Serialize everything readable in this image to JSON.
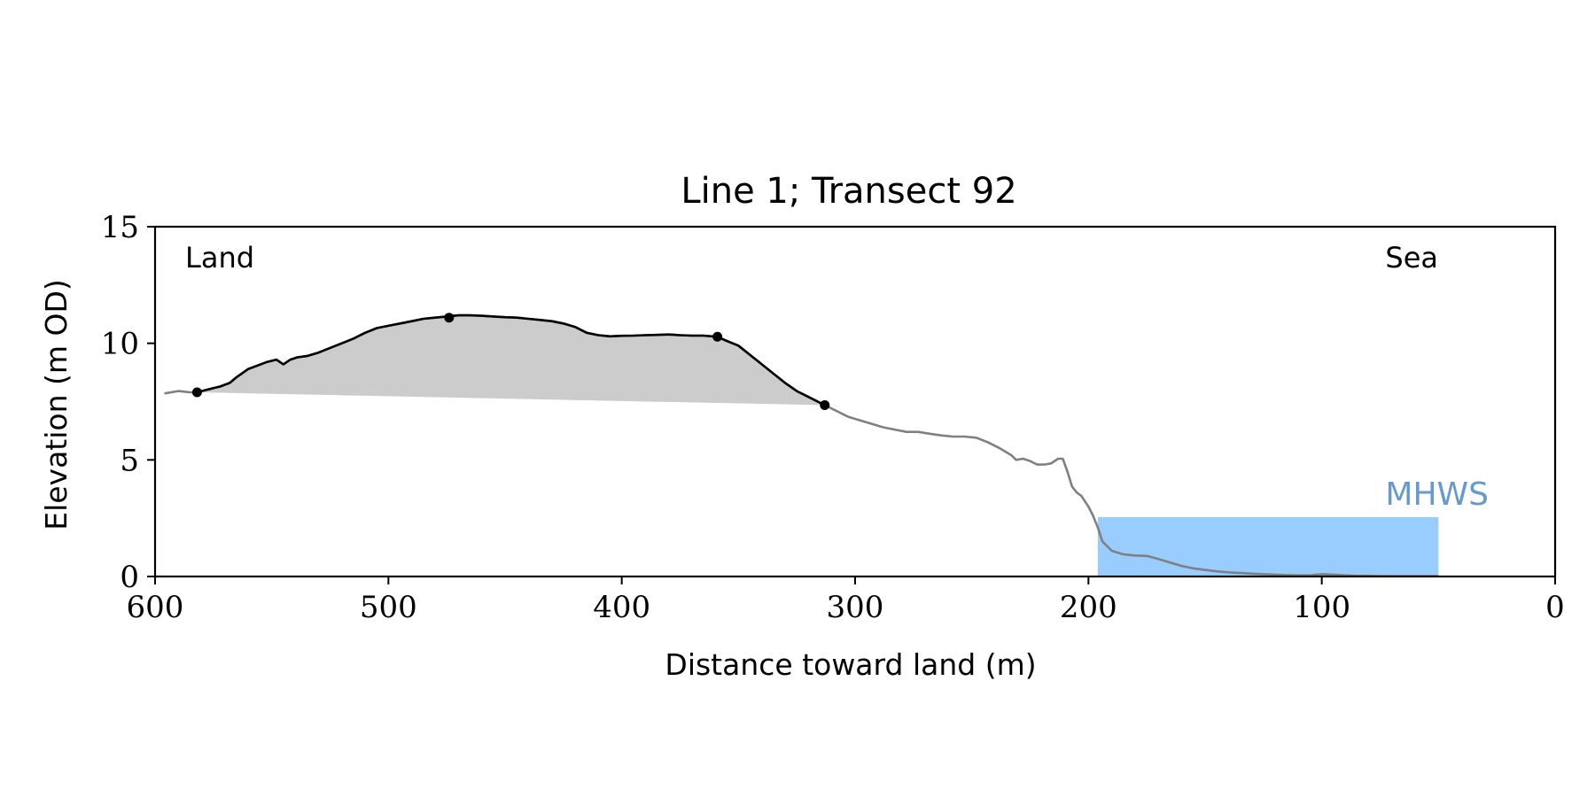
{
  "chart_data": {
    "type": "line",
    "title": "Line 1; Transect 92",
    "xlabel": "Distance toward land (m)",
    "ylabel": "Elevation (m OD)",
    "xlim": [
      600,
      0
    ],
    "ylim": [
      0,
      15
    ],
    "x_ticks": [
      600,
      500,
      400,
      300,
      200,
      100,
      0
    ],
    "y_ticks": [
      0,
      5,
      10,
      15
    ],
    "grid": false,
    "annotations": {
      "land": "Land",
      "sea": "Sea",
      "mhws": "MHWS"
    },
    "mhws": {
      "elevation": 2.55,
      "x_start": 196,
      "x_end": 50
    },
    "colors": {
      "profile": "#808080",
      "dune_line": "#000000",
      "dune_fill": "#cccccc",
      "mhws_fill": "#99ccff",
      "mhws_text": "#6699cc"
    },
    "series": [
      {
        "x": [
          596,
          590,
          585,
          582,
          578,
          572,
          568,
          565,
          560,
          556,
          552,
          548,
          545,
          542,
          539,
          535,
          530,
          525,
          520,
          515,
          510,
          505,
          500,
          495,
          490,
          485,
          480,
          475,
          470,
          465,
          460,
          455,
          450,
          445,
          440,
          435,
          430,
          425,
          420,
          415,
          410,
          405,
          400,
          395,
          390,
          385,
          380,
          375,
          370,
          365,
          359,
          355,
          350,
          345,
          340,
          335,
          330,
          325,
          320,
          313,
          308,
          303,
          298,
          293,
          288,
          283,
          278,
          273,
          268,
          263,
          258,
          253,
          248,
          243,
          238,
          233,
          231,
          228,
          225,
          222,
          219,
          216,
          213,
          211,
          209,
          207,
          205,
          203,
          200,
          198,
          196,
          194,
          190,
          185,
          180,
          175,
          170,
          165,
          160,
          155,
          150,
          145,
          140,
          135,
          130,
          125,
          120,
          115,
          110,
          105,
          100,
          95,
          90,
          85,
          80,
          75,
          70,
          65,
          60,
          55,
          50
        ],
        "y": [
          7.85,
          7.95,
          7.9,
          7.9,
          8.0,
          8.15,
          8.3,
          8.55,
          8.9,
          9.05,
          9.2,
          9.3,
          9.1,
          9.3,
          9.4,
          9.45,
          9.6,
          9.8,
          10.0,
          10.2,
          10.45,
          10.65,
          10.75,
          10.85,
          10.95,
          11.05,
          11.1,
          11.15,
          11.2,
          11.2,
          11.18,
          11.15,
          11.12,
          11.1,
          11.05,
          11.0,
          10.95,
          10.85,
          10.7,
          10.45,
          10.35,
          10.3,
          10.32,
          10.33,
          10.35,
          10.36,
          10.38,
          10.35,
          10.33,
          10.33,
          10.28,
          10.1,
          9.9,
          9.5,
          9.1,
          8.7,
          8.3,
          7.95,
          7.7,
          7.35,
          7.1,
          6.85,
          6.7,
          6.55,
          6.4,
          6.3,
          6.2,
          6.2,
          6.12,
          6.05,
          6.0,
          6.0,
          5.95,
          5.75,
          5.5,
          5.2,
          5.0,
          5.05,
          4.95,
          4.8,
          4.8,
          4.85,
          5.05,
          5.05,
          4.5,
          3.85,
          3.6,
          3.45,
          3.0,
          2.6,
          2.1,
          1.5,
          1.1,
          0.95,
          0.9,
          0.88,
          0.75,
          0.6,
          0.45,
          0.35,
          0.28,
          0.22,
          0.18,
          0.15,
          0.12,
          0.1,
          0.08,
          0.06,
          0.05,
          0.05,
          0.1,
          0.08,
          0.05,
          0.03,
          0.03,
          0.02,
          0.02,
          0.02,
          0.02,
          0.02,
          0.02
        ]
      }
    ],
    "dune": {
      "x_start": 582,
      "x_end": 313
    },
    "markers": [
      {
        "x": 582,
        "y": 7.9
      },
      {
        "x": 474,
        "y": 11.1
      },
      {
        "x": 359,
        "y": 10.28
      },
      {
        "x": 313,
        "y": 7.35
      }
    ]
  }
}
